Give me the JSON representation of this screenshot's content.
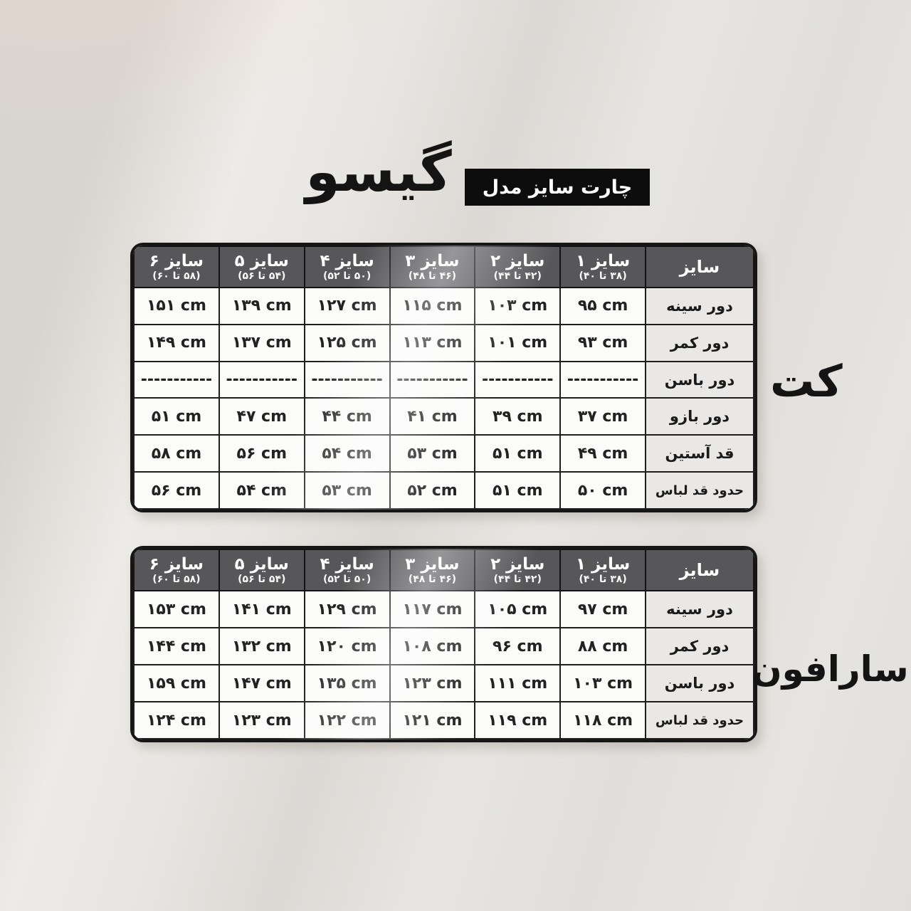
{
  "poster": {
    "brand_title": "گیسو",
    "badge_label": "چارت سایز مدل"
  },
  "size_header": {
    "corner_label": "سایز",
    "sizes": [
      {
        "label": "سایز ۱",
        "range": "(۳۸ تا ۴۰)"
      },
      {
        "label": "سایز ۲",
        "range": "(۴۲ تا ۴۴)"
      },
      {
        "label": "سایز ۳",
        "range": "(۴۶ تا ۴۸)"
      },
      {
        "label": "سایز ۴",
        "range": "(۵۰ تا ۵۲)"
      },
      {
        "label": "سایز ۵",
        "range": "(۵۴ تا ۵۶)"
      },
      {
        "label": "سایز ۶",
        "range": "(۵۸ تا ۶۰)"
      }
    ]
  },
  "jacket_table": {
    "side_label": "کت",
    "rows": [
      {
        "label": "دور سینه",
        "values": [
          "۹۵ cm",
          "۱۰۳ cm",
          "۱۱۵ cm",
          "۱۲۷ cm",
          "۱۳۹ cm",
          "۱۵۱ cm"
        ]
      },
      {
        "label": "دور کمر",
        "values": [
          "۹۳ cm",
          "۱۰۱ cm",
          "۱۱۳ cm",
          "۱۲۵ cm",
          "۱۳۷ cm",
          "۱۴۹ cm"
        ]
      },
      {
        "label": "دور باسن",
        "values": [
          "-----------",
          "-----------",
          "-----------",
          "-----------",
          "-----------",
          "-----------"
        ]
      },
      {
        "label": "دور بازو",
        "values": [
          "۳۷ cm",
          "۳۹ cm",
          "۴۱ cm",
          "۴۴ cm",
          "۴۷ cm",
          "۵۱ cm"
        ]
      },
      {
        "label": "قد آستین",
        "values": [
          "۴۹ cm",
          "۵۱ cm",
          "۵۳ cm",
          "۵۴ cm",
          "۵۶ cm",
          "۵۸ cm"
        ]
      },
      {
        "label": "حدود قد لباس",
        "values": [
          "۵۰ cm",
          "۵۱ cm",
          "۵۲ cm",
          "۵۳ cm",
          "۵۴ cm",
          "۵۶ cm"
        ]
      }
    ]
  },
  "sarafon_table": {
    "side_label": "سارافون",
    "rows": [
      {
        "label": "دور سینه",
        "values": [
          "۹۷ cm",
          "۱۰۵ cm",
          "۱۱۷ cm",
          "۱۲۹ cm",
          "۱۴۱ cm",
          "۱۵۳ cm"
        ]
      },
      {
        "label": "دور کمر",
        "values": [
          "۸۸ cm",
          "۹۶ cm",
          "۱۰۸ cm",
          "۱۲۰ cm",
          "۱۳۲ cm",
          "۱۴۴ cm"
        ]
      },
      {
        "label": "دور باسن",
        "values": [
          "۱۰۳ cm",
          "۱۱۱ cm",
          "۱۲۳ cm",
          "۱۳۵ cm",
          "۱۴۷ cm",
          "۱۵۹ cm"
        ]
      },
      {
        "label": "حدود قد لباس",
        "values": [
          "۱۱۸ cm",
          "۱۱۹ cm",
          "۱۲۱ cm",
          "۱۲۲ cm",
          "۱۲۳ cm",
          "۱۲۴ cm"
        ]
      }
    ]
  },
  "colors": {
    "header_bg": "#57575a",
    "label_cell_bg": "#e9e8e6",
    "data_cell_bg": "#fbfbfa",
    "grid_border": "#1e1e1e",
    "table_border": "#161616",
    "badge_bg": "#0d0d0d",
    "badge_text": "#ffffff",
    "background": "#e2dfdb"
  }
}
